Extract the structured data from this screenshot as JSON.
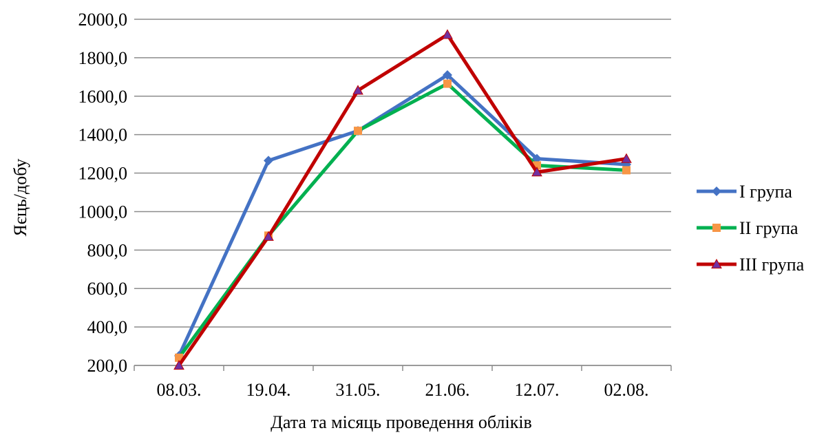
{
  "chart_data": {
    "type": "line",
    "title": "",
    "xlabel": "Дата та місяць проведення обліків",
    "ylabel": "Яєць/добу",
    "categories": [
      "08.03.",
      "19.04.",
      "31.05.",
      "21.06.",
      "12.07.",
      "02.08."
    ],
    "ylim": [
      200,
      2000
    ],
    "yticks": [
      "200,0",
      "400,0",
      "600,0",
      "800,0",
      "1000,0",
      "1200,0",
      "1400,0",
      "1600,0",
      "1800,0",
      "2000,0"
    ],
    "grid": "horizontal",
    "legend_position": "right",
    "series": [
      {
        "name": "I група",
        "color": "#4472C4",
        "marker": "diamond",
        "values": [
          250,
          1265,
          1420,
          1710,
          1275,
          1245
        ]
      },
      {
        "name": "II група",
        "color": "#00B050",
        "marker": "square",
        "values": [
          240,
          875,
          1420,
          1665,
          1240,
          1215
        ]
      },
      {
        "name": "III група",
        "color": "#C00000",
        "marker": "triangle",
        "values": [
          200,
          870,
          1630,
          1920,
          1205,
          1275
        ]
      }
    ]
  }
}
